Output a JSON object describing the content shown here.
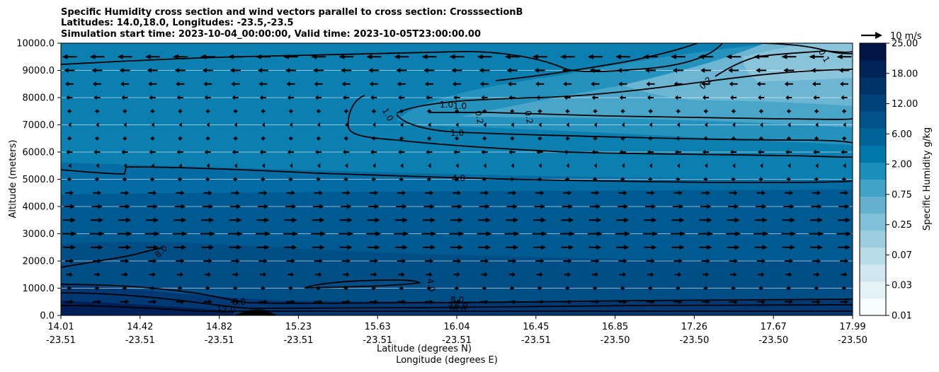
{
  "chart_data": {
    "type": "contour",
    "title_lines": [
      "Specific Humidity cross section and wind vectors parallel to cross section: CrosssectionB",
      "Latitudes: 14.0,18.0, Longitudes: -23.5,-23.5",
      "Simulation start time: 2023-10-04_00:00:00, Valid time: 2023-10-05T23:00:00.00"
    ],
    "xlabel_lat": "Latitude (degrees N)",
    "xlabel_lon": "Longitude (degrees E)",
    "ylabel": "Altitude (meters)",
    "ylim": [
      0,
      10000
    ],
    "yticks": [
      "0.0",
      "1000.0",
      "2000.0",
      "3000.0",
      "4000.0",
      "5000.0",
      "6000.0",
      "7000.0",
      "8000.0",
      "9000.0",
      "10000.0"
    ],
    "ytick_values": [
      0,
      1000,
      2000,
      3000,
      4000,
      5000,
      6000,
      7000,
      8000,
      9000,
      10000
    ],
    "xticks_lat": [
      "14.01",
      "14.42",
      "14.82",
      "15.23",
      "15.63",
      "16.04",
      "16.45",
      "16.85",
      "17.26",
      "17.67",
      "17.99"
    ],
    "xticks_lon": [
      "-23.51",
      "-23.51",
      "-23.51",
      "-23.51",
      "-23.51",
      "-23.51",
      "-23.51",
      "-23.50",
      "-23.50",
      "-23.50",
      "-23.50"
    ],
    "grid": "horizontal",
    "colorbar": {
      "label": "Specific Humidity g/kg",
      "ticks": [
        "0.01",
        "0.03",
        "0.07",
        "0.25",
        "0.75",
        "2.00",
        "6.00",
        "12.00",
        "18.00",
        "25.00"
      ],
      "colors": [
        "#f7fcfd",
        "#e4f2f6",
        "#cfe8f0",
        "#b8dde8",
        "#9bcfe0",
        "#80c1d8",
        "#64b2d0",
        "#42a3c8",
        "#1b8ebc",
        "#0077aa",
        "#006499",
        "#00538a",
        "#00447b",
        "#003368",
        "#002356",
        "#001545"
      ]
    },
    "quiver_key": "10 m/s",
    "contour_labels": [
      "0.1",
      "0.2",
      "0.2",
      "0.2",
      "1.0",
      "1.0",
      "1.0",
      "1.0",
      "4.0",
      "4.0",
      "8.0",
      "8.0",
      "8.0",
      "12.0",
      "16.0",
      "16.0"
    ],
    "wind_rows_m": [
      {
        "alt": 9500,
        "u": -7
      },
      {
        "alt": 9000,
        "u": -5
      },
      {
        "alt": 8500,
        "u": -4
      },
      {
        "alt": 8000,
        "u": -3
      },
      {
        "alt": 7500,
        "u": -2
      },
      {
        "alt": 7000,
        "u": -1
      },
      {
        "alt": 6500,
        "u": -2
      },
      {
        "alt": 6000,
        "u": -3
      },
      {
        "alt": 5500,
        "u": -1
      },
      {
        "alt": 5000,
        "u": 2
      },
      {
        "alt": 4500,
        "u": 4
      },
      {
        "alt": 4000,
        "u": 5
      },
      {
        "alt": 3500,
        "u": 6
      },
      {
        "alt": 3000,
        "u": 7
      },
      {
        "alt": 2500,
        "u": 6
      },
      {
        "alt": 2000,
        "u": 4
      },
      {
        "alt": 1500,
        "u": 3
      },
      {
        "alt": 1000,
        "u": 2
      },
      {
        "alt": 500,
        "u": 4
      }
    ]
  }
}
